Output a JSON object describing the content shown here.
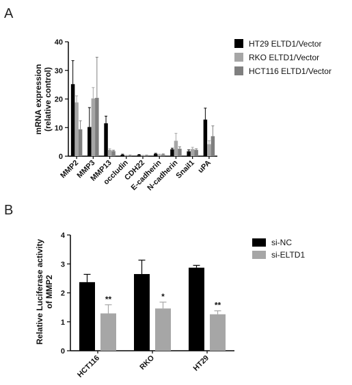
{
  "panels": [
    "A",
    "B"
  ],
  "colors": {
    "black": "#000000",
    "light_gray": "#a6a6a6",
    "mid_gray": "#7f7f7f"
  },
  "chart_data": [
    {
      "type": "bar",
      "panel": "A",
      "ylabel_lines": [
        "mRNA expression",
        "(relative control)"
      ],
      "ylim": [
        0,
        40
      ],
      "yticks": [
        0,
        10,
        20,
        30,
        40
      ],
      "categories": [
        "MMP2",
        "MMP3",
        "MMP13",
        "occludin",
        "CDH22",
        "E-cadherin",
        "N-cadherin",
        "Snail1",
        "uPA"
      ],
      "series": [
        {
          "name": "HT29  ELTD1/Vector",
          "color": "#000000",
          "values": [
            25.2,
            10.2,
            11.5,
            0.5,
            0.4,
            0.8,
            2.4,
            1.7,
            12.8
          ],
          "errors": [
            8.2,
            6.8,
            2.5,
            0.2,
            0.2,
            0.2,
            0.4,
            0.5,
            4.0
          ]
        },
        {
          "name": "RKO ELTD1/Vector",
          "color": "#a6a6a6",
          "values": [
            18.8,
            20.2,
            2.2,
            0.2,
            0.2,
            0.5,
            5.4,
            2.5,
            4.2
          ],
          "errors": [
            2.3,
            3.8,
            0.4,
            0.1,
            0.1,
            0.2,
            2.6,
            0.6,
            1.2
          ]
        },
        {
          "name": "HCT116 ELTD1/Vector",
          "color": "#7f7f7f",
          "values": [
            9.4,
            20.4,
            1.8,
            0.3,
            0.3,
            0.6,
            2.6,
            2.2,
            7.0
          ],
          "errors": [
            3.0,
            14.2,
            0.3,
            0.1,
            0.1,
            0.2,
            0.7,
            0.4,
            3.6
          ]
        }
      ],
      "legend_position": "right"
    },
    {
      "type": "bar",
      "panel": "B",
      "ylabel_lines": [
        "Relative Luciferase activity",
        "of MMP2"
      ],
      "ylim": [
        0,
        4
      ],
      "yticks": [
        0,
        1,
        2,
        3,
        4
      ],
      "categories": [
        "HCT116",
        "RKO",
        "HT29"
      ],
      "series": [
        {
          "name": "si-NC",
          "color": "#000000",
          "values": [
            2.37,
            2.65,
            2.87
          ],
          "errors": [
            0.27,
            0.48,
            0.08
          ]
        },
        {
          "name": "si-ELTD1",
          "color": "#a6a6a6",
          "values": [
            1.29,
            1.46,
            1.26
          ],
          "errors": [
            0.3,
            0.22,
            0.12
          ]
        }
      ],
      "annotations": [
        "**",
        "*",
        "**"
      ],
      "legend_position": "right"
    }
  ]
}
